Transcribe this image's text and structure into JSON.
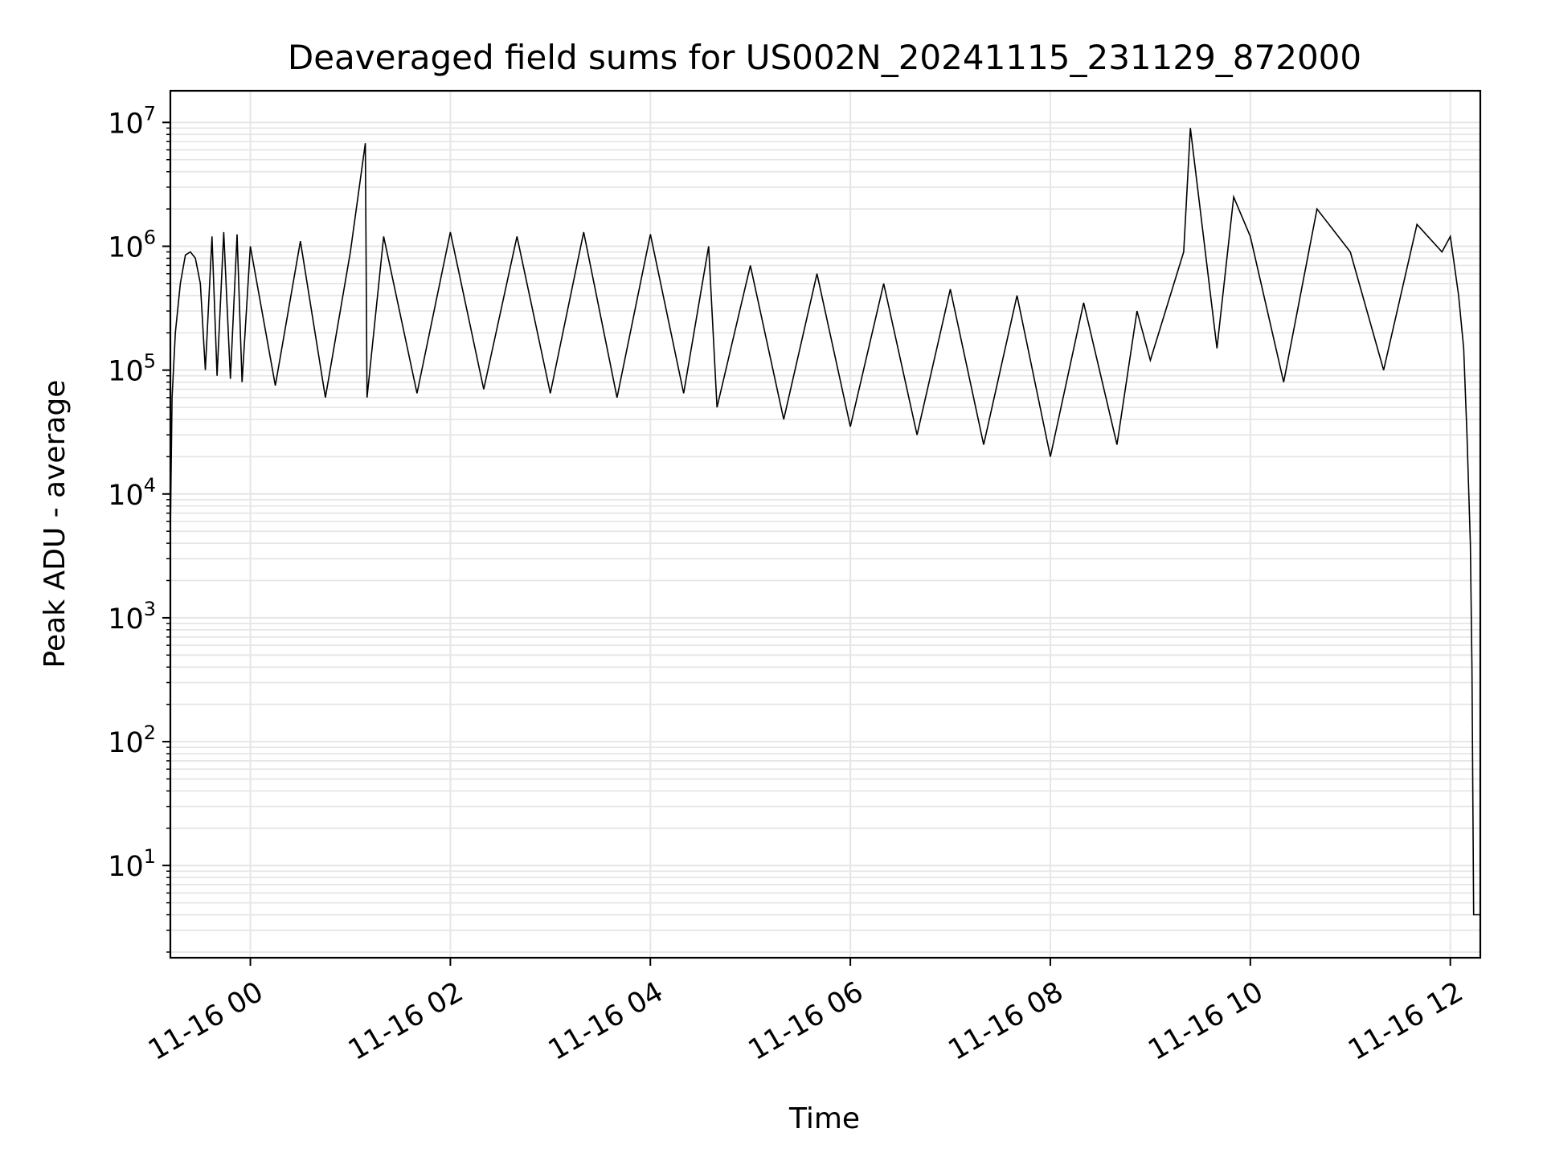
{
  "chart_data": {
    "type": "line",
    "title": "Deaveraged field sums for US002N_20241115_231129_872000",
    "xlabel": "Time",
    "ylabel": "Peak ADU - average",
    "yscale": "log",
    "ylim": [
      1.8,
      18000000
    ],
    "xlim": [
      "2024-11-15 23:12",
      "2024-11-16 12:18"
    ],
    "grid": true,
    "line_color": "#000000",
    "grid_color": "#e6e6e6",
    "x_ticks": [
      {
        "time": "2024-11-16 00:00",
        "label": "11-16 00"
      },
      {
        "time": "2024-11-16 02:00",
        "label": "11-16 02"
      },
      {
        "time": "2024-11-16 04:00",
        "label": "11-16 04"
      },
      {
        "time": "2024-11-16 06:00",
        "label": "11-16 06"
      },
      {
        "time": "2024-11-16 08:00",
        "label": "11-16 08"
      },
      {
        "time": "2024-11-16 10:00",
        "label": "11-16 10"
      },
      {
        "time": "2024-11-16 12:00",
        "label": "11-16 12"
      }
    ],
    "y_ticks": [
      {
        "value": 10,
        "base": "10",
        "exp": "1"
      },
      {
        "value": 100,
        "base": "10",
        "exp": "2"
      },
      {
        "value": 1000,
        "base": "10",
        "exp": "3"
      },
      {
        "value": 10000,
        "base": "10",
        "exp": "4"
      },
      {
        "value": 100000,
        "base": "10",
        "exp": "5"
      },
      {
        "value": 1000000,
        "base": "10",
        "exp": "6"
      },
      {
        "value": 10000000,
        "base": "10",
        "exp": "7"
      }
    ],
    "series": [
      {
        "x": [
          "2024-11-15 23:12",
          "2024-11-15 23:12",
          "2024-11-15 23:13",
          "2024-11-15 23:15",
          "2024-11-15 23:18",
          "2024-11-15 23:21",
          "2024-11-15 23:24",
          "2024-11-15 23:27",
          "2024-11-15 23:30",
          "2024-11-15 23:33",
          "2024-11-15 23:37",
          "2024-11-15 23:40",
          "2024-11-15 23:44",
          "2024-11-15 23:48",
          "2024-11-15 23:52",
          "2024-11-15 23:55",
          "2024-11-16 00:00",
          "2024-11-16 00:15",
          "2024-11-16 00:30",
          "2024-11-16 00:45",
          "2024-11-16 01:00",
          "2024-11-16 01:09",
          "2024-11-16 01:10",
          "2024-11-16 01:20",
          "2024-11-16 01:40",
          "2024-11-16 02:00",
          "2024-11-16 02:20",
          "2024-11-16 02:40",
          "2024-11-16 03:00",
          "2024-11-16 03:20",
          "2024-11-16 03:40",
          "2024-11-16 04:00",
          "2024-11-16 04:20",
          "2024-11-16 04:35",
          "2024-11-16 04:40",
          "2024-11-16 05:00",
          "2024-11-16 05:20",
          "2024-11-16 05:40",
          "2024-11-16 06:00",
          "2024-11-16 06:20",
          "2024-11-16 06:40",
          "2024-11-16 07:00",
          "2024-11-16 07:20",
          "2024-11-16 07:40",
          "2024-11-16 08:00",
          "2024-11-16 08:20",
          "2024-11-16 08:40",
          "2024-11-16 08:52",
          "2024-11-16 09:00",
          "2024-11-16 09:20",
          "2024-11-16 09:24",
          "2024-11-16 09:40",
          "2024-11-16 09:50",
          "2024-11-16 10:00",
          "2024-11-16 10:20",
          "2024-11-16 10:40",
          "2024-11-16 11:00",
          "2024-11-16 11:20",
          "2024-11-16 11:40",
          "2024-11-16 11:55",
          "2024-11-16 12:00",
          "2024-11-16 12:05",
          "2024-11-16 12:08",
          "2024-11-16 12:10",
          "2024-11-16 12:12",
          "2024-11-16 12:13",
          "2024-11-16 12:14",
          "2024-11-16 12:18"
        ],
        "values": [
          1.8,
          5000,
          60000,
          200000,
          500000,
          850000,
          900000,
          800000,
          500000,
          100000,
          1200000,
          90000,
          1300000,
          85000,
          1250000,
          80000,
          1000000,
          75000,
          1100000,
          60000,
          900000,
          6800000,
          60000,
          1200000,
          65000,
          1300000,
          70000,
          1200000,
          65000,
          1300000,
          60000,
          1250000,
          65000,
          1000000,
          50000,
          700000,
          40000,
          600000,
          35000,
          500000,
          30000,
          450000,
          25000,
          400000,
          20000,
          350000,
          25000,
          300000,
          120000,
          900000,
          9000000,
          150000,
          2500000,
          1200000,
          80000,
          2000000,
          900000,
          100000,
          1500000,
          900000,
          1200000,
          400000,
          150000,
          30000,
          4000,
          400,
          4,
          4
        ]
      }
    ]
  }
}
